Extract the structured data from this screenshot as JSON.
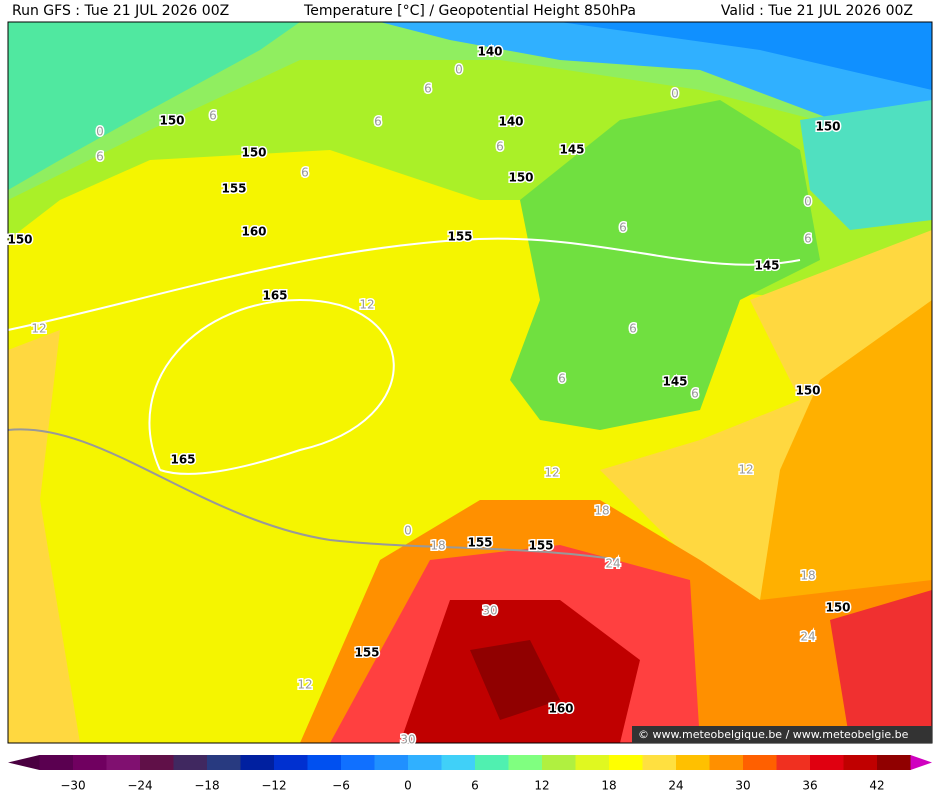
{
  "header": {
    "run": "Run GFS : Tue 21 JUL 2026 00Z",
    "title": "Temperature [°C] / Geopotential Height 850hPa",
    "valid": "Valid : Tue 21 JUL 2026 00Z"
  },
  "height_labels": [
    "140",
    "140",
    "150",
    "150",
    "145",
    "150",
    "155",
    "150",
    "155",
    "160",
    "145",
    "165",
    "145",
    "150",
    "165",
    "155",
    "155",
    "150",
    "155",
    "160",
    "150"
  ],
  "temperature_labels": [
    "0",
    "6",
    "6",
    "0",
    "6",
    "6",
    "6",
    "6",
    "0",
    "0",
    "6",
    "6",
    "12",
    "12",
    "6",
    "6",
    "6",
    "12",
    "12",
    "18",
    "18",
    "0",
    "24",
    "18",
    "30",
    "24",
    "12",
    "30"
  ],
  "colorbar": {
    "colors": [
      "#5a0050",
      "#700060",
      "#801070",
      "#601048",
      "#402860",
      "#283a80",
      "#0020a0",
      "#0030d0",
      "#0050f0",
      "#1070ff",
      "#2090ff",
      "#30b0ff",
      "#40d0f8",
      "#50f0b0",
      "#80ff80",
      "#b0f040",
      "#e0f820",
      "#ffff00",
      "#ffe040",
      "#ffc000",
      "#ff9000",
      "#ff6000",
      "#f03020",
      "#e00010",
      "#c00000",
      "#900000"
    ],
    "left_color": "#4a0040",
    "right_color": "#d000c0",
    "labels": [
      "−30",
      "−24",
      "−18",
      "−12",
      "−6",
      "0",
      "6",
      "12",
      "18",
      "24",
      "30",
      "36",
      "42"
    ]
  },
  "watermark": "© www.meteobelgique.be / www.meteobelgie.be"
}
